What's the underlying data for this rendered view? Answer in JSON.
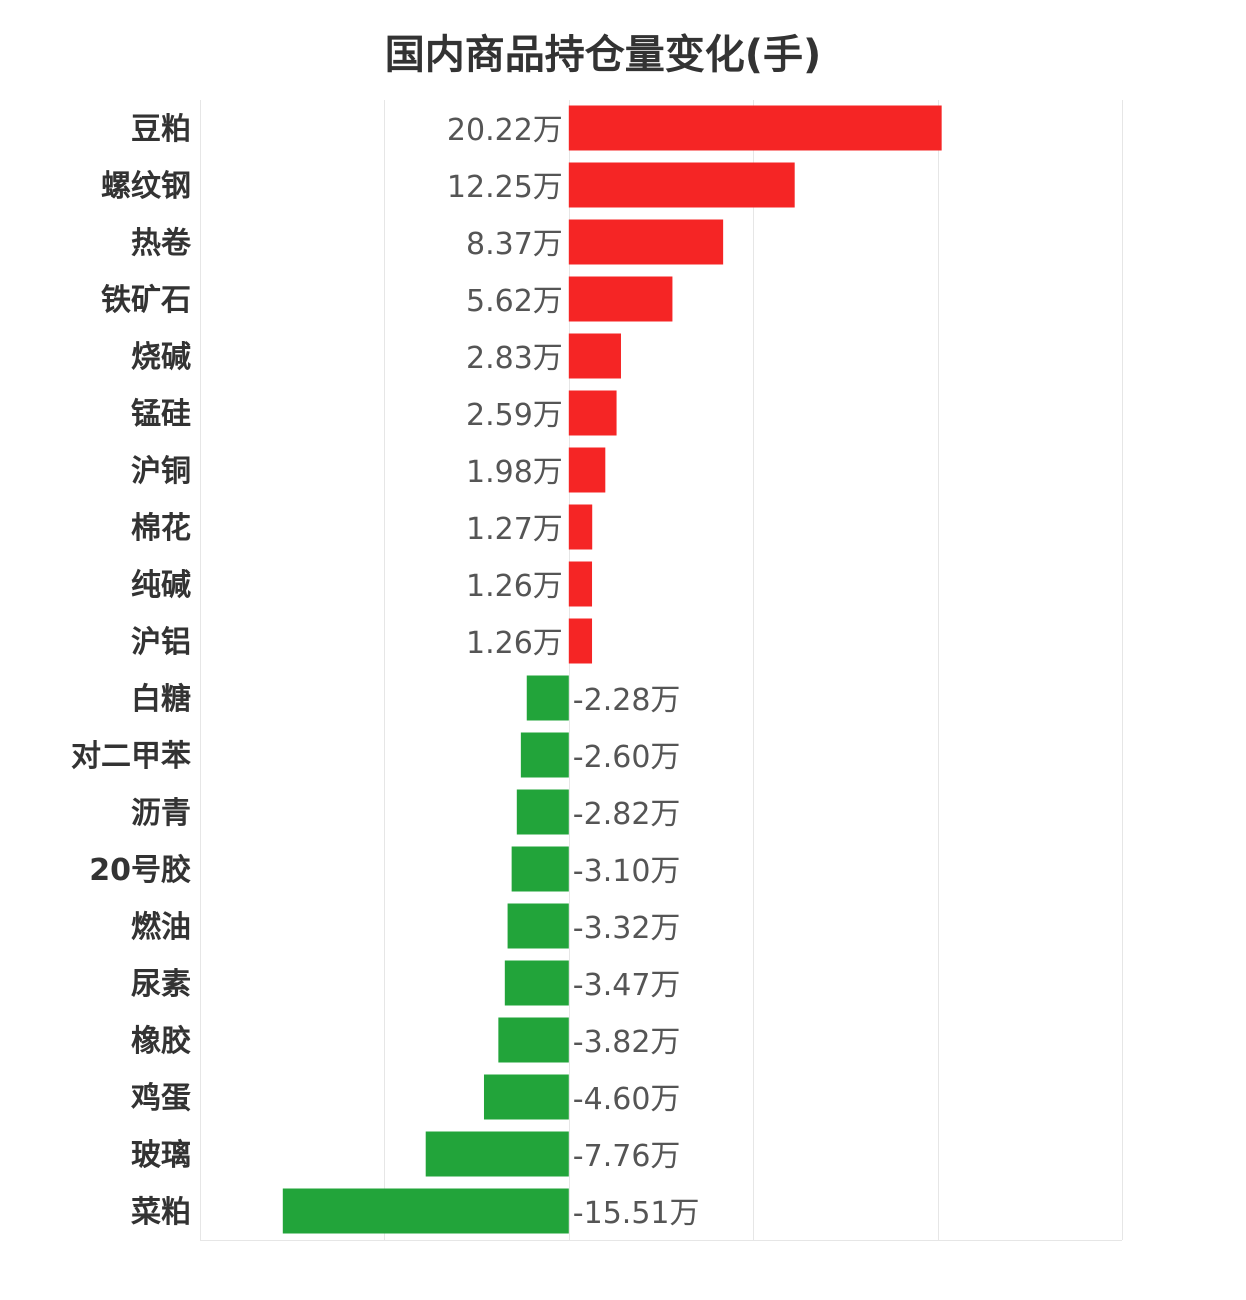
{
  "chart_data": {
    "type": "bar",
    "orientation": "horizontal",
    "title": "国内商品持仓量变化(手)",
    "unit_suffix": "万",
    "xlim": [
      -20,
      30
    ],
    "grid": true,
    "positive_color": "#f52525",
    "negative_color": "#22a43a",
    "categories": [
      "豆粕",
      "螺纹钢",
      "热卷",
      "铁矿石",
      "烧碱",
      "锰硅",
      "沪铜",
      "棉花",
      "纯碱",
      "沪铝",
      "白糖",
      "对二甲苯",
      "沥青",
      "20号胶",
      "燃油",
      "尿素",
      "橡胶",
      "鸡蛋",
      "玻璃",
      "菜粕"
    ],
    "values": [
      20.22,
      12.25,
      8.37,
      5.62,
      2.83,
      2.59,
      1.98,
      1.27,
      1.26,
      1.26,
      -2.28,
      -2.6,
      -2.82,
      -3.1,
      -3.32,
      -3.47,
      -3.82,
      -4.6,
      -7.76,
      -15.51
    ],
    "labels": [
      "20.22万",
      "12.25万",
      "8.37万",
      "5.62万",
      "2.83万",
      "2.59万",
      "1.98万",
      "1.27万",
      "1.26万",
      "1.26万",
      "-2.28万",
      "-2.60万",
      "-2.82万",
      "-3.10万",
      "-3.32万",
      "-3.47万",
      "-3.82万",
      "-4.60万",
      "-7.76万",
      "-15.51万"
    ]
  }
}
